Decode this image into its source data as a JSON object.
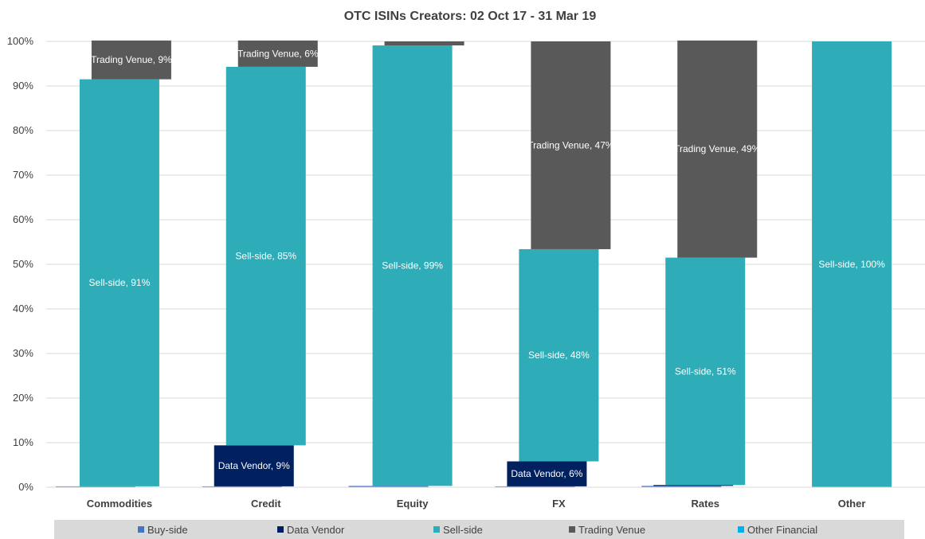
{
  "chart_data": {
    "type": "bar",
    "stacked": true,
    "title": "OTC ISINs Creators: 02 Oct 17 - 31 Mar 19",
    "xlabel": "",
    "ylabel": "",
    "ylim": [
      0,
      100
    ],
    "y_ticks": [
      "0%",
      "10%",
      "20%",
      "30%",
      "40%",
      "50%",
      "60%",
      "70%",
      "80%",
      "90%",
      "100%"
    ],
    "grid": true,
    "legend_position": "bottom",
    "categories": [
      "Commodities",
      "Credit",
      "Equity",
      "FX",
      "Rates",
      "Other"
    ],
    "series": [
      {
        "name": "Buy-side",
        "color": "#4472C4",
        "offset": -1,
        "values": [
          0.2,
          0.2,
          0.3,
          0.2,
          0.3,
          0
        ]
      },
      {
        "name": "Data Vendor",
        "color": "#002060",
        "offset": 0,
        "values": [
          0,
          9.2,
          0,
          5.6,
          0.2,
          0
        ]
      },
      {
        "name": "Sell-side",
        "color": "#2EADB8",
        "offset": 1,
        "values": [
          91.3,
          84.9,
          98.8,
          47.6,
          51.0,
          100
        ]
      },
      {
        "name": "Trading Venue",
        "color": "#595959",
        "offset": 2,
        "values": [
          8.7,
          5.9,
          0.9,
          46.6,
          48.7,
          0
        ]
      },
      {
        "name": "Other Financial",
        "color": "#00B0F0",
        "offset": 3,
        "values": [
          0,
          0,
          0,
          0,
          0,
          0
        ]
      }
    ],
    "data_labels": [
      {
        "category": 0,
        "series": 2,
        "text": "Sell-side, 91%"
      },
      {
        "category": 0,
        "series": 3,
        "text": "Trading Venue, 9%"
      },
      {
        "category": 1,
        "series": 1,
        "text": "Data Vendor, 9%"
      },
      {
        "category": 1,
        "series": 2,
        "text": "Sell-side, 85%"
      },
      {
        "category": 1,
        "series": 3,
        "text": "Trading Venue, 6%"
      },
      {
        "category": 2,
        "series": 2,
        "text": "Sell-side, 99%"
      },
      {
        "category": 3,
        "series": 1,
        "text": "Data Vendor, 6%"
      },
      {
        "category": 3,
        "series": 2,
        "text": "Sell-side, 48%"
      },
      {
        "category": 3,
        "series": 3,
        "text": "Trading Venue, 47%"
      },
      {
        "category": 4,
        "series": 2,
        "text": "Sell-side, 51%"
      },
      {
        "category": 4,
        "series": 3,
        "text": "Trading Venue, 49%"
      },
      {
        "category": 5,
        "series": 2,
        "text": "Sell-side, 100%"
      }
    ],
    "legend_background": "#D9D9D9",
    "grid_color": "#D9D9D9"
  }
}
